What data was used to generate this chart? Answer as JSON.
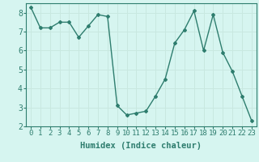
{
  "x": [
    0,
    1,
    2,
    3,
    4,
    5,
    6,
    7,
    8,
    9,
    10,
    11,
    12,
    13,
    14,
    15,
    16,
    17,
    18,
    19,
    20,
    21,
    22,
    23
  ],
  "y": [
    8.3,
    7.2,
    7.2,
    7.5,
    7.5,
    6.7,
    7.3,
    7.9,
    7.8,
    3.1,
    2.6,
    2.7,
    2.8,
    3.6,
    4.5,
    6.4,
    7.1,
    8.1,
    6.0,
    7.9,
    5.9,
    4.9,
    3.6,
    2.3
  ],
  "xlabel": "Humidex (Indice chaleur)",
  "ylim": [
    2,
    8.5
  ],
  "yticks": [
    2,
    3,
    4,
    5,
    6,
    7,
    8
  ],
  "xticks": [
    0,
    1,
    2,
    3,
    4,
    5,
    6,
    7,
    8,
    9,
    10,
    11,
    12,
    13,
    14,
    15,
    16,
    17,
    18,
    19,
    20,
    21,
    22,
    23
  ],
  "line_color": "#2e7d6e",
  "marker": "D",
  "marker_size": 2.0,
  "bg_color": "#d6f5f0",
  "grid_color": "#c8e8e0",
  "line_width": 1.0,
  "tick_fontsize": 6.5,
  "xlabel_fontsize": 7.5
}
